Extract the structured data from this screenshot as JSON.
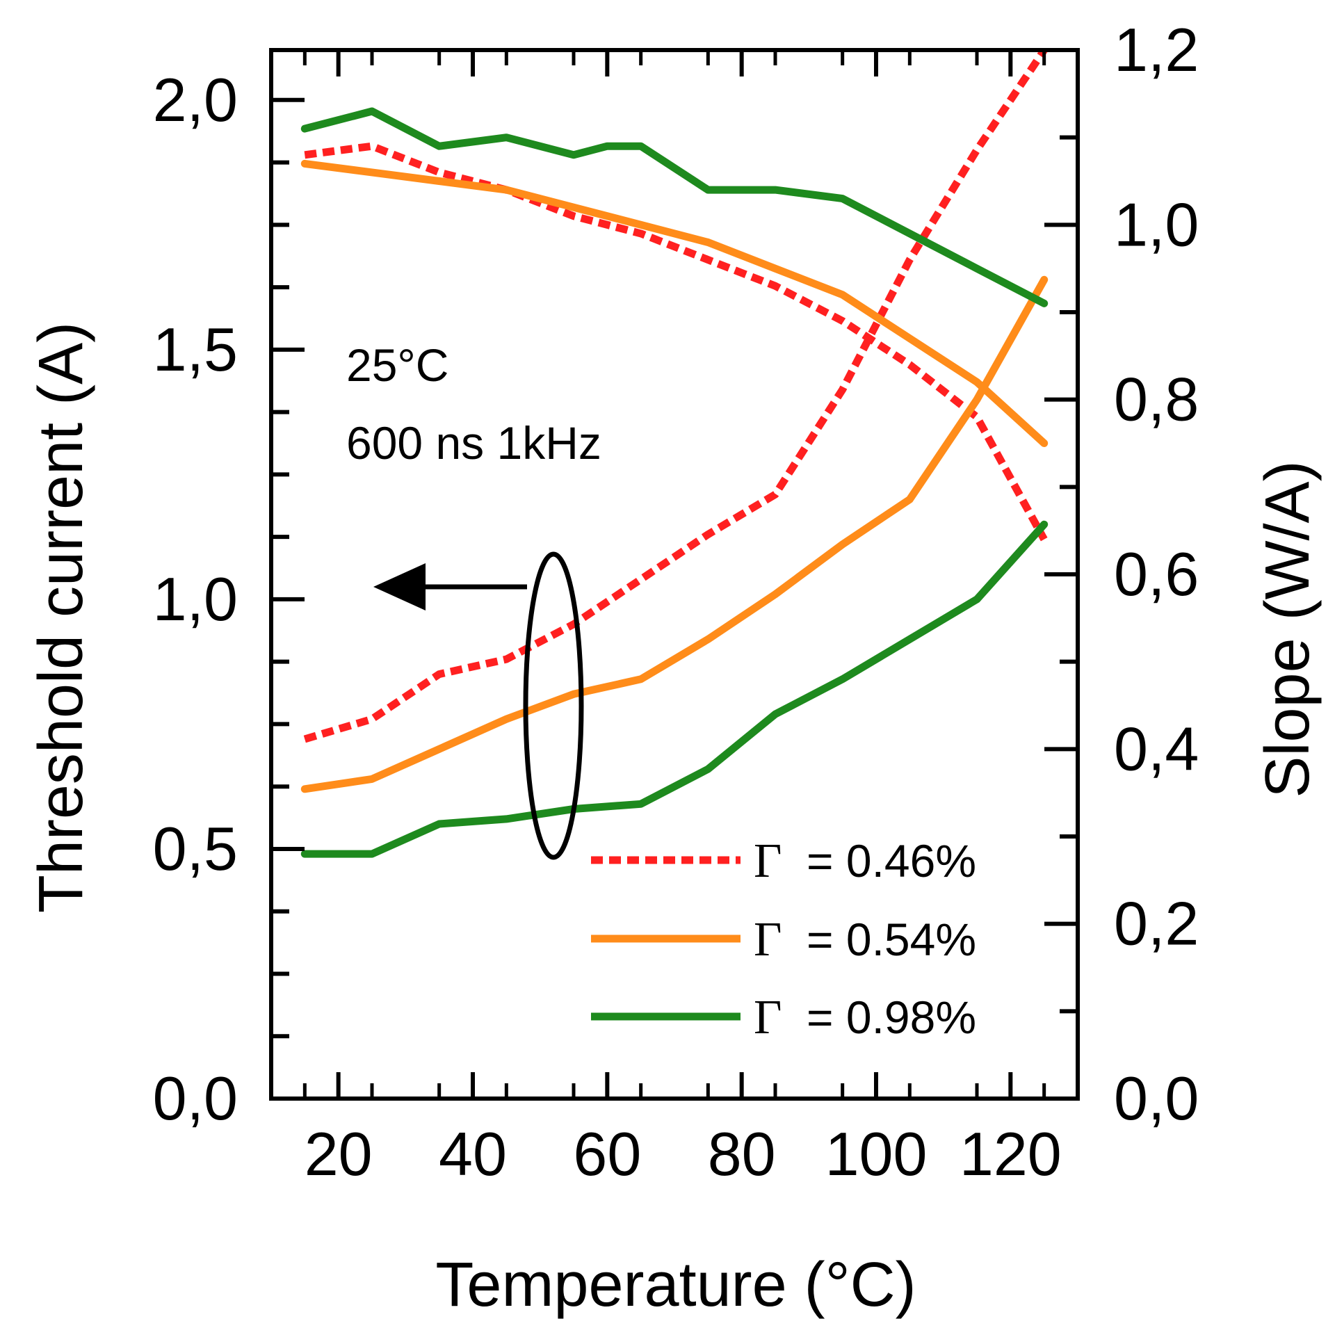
{
  "chart_data": {
    "type": "line",
    "xlabel": "Temperature (°C)",
    "ylabel_left": "Threshold current (A)",
    "ylabel_right": "Slope (W/A)",
    "xlim": [
      10,
      130
    ],
    "ylim_left": [
      0,
      2.1
    ],
    "ylim_right": [
      0,
      1.2
    ],
    "x_ticks": [
      "20",
      "40",
      "60",
      "80",
      "100",
      "120"
    ],
    "y_left_ticks": [
      "0,0",
      "0,5",
      "1,0",
      "1,5",
      "2,0"
    ],
    "y_right_ticks": [
      "0,0",
      "0,2",
      "0,4",
      "0,6",
      "0,8",
      "1,0",
      "1,2"
    ],
    "annotations": {
      "line1": "25°C",
      "line2": "600 ns 1kHz"
    },
    "legend": [
      {
        "prefix": "Γ",
        "text": "= 0.46%"
      },
      {
        "prefix": "Γ",
        "text": "= 0.54%"
      },
      {
        "prefix": "Γ",
        "text": "= 0.98%"
      }
    ],
    "colors": {
      "g046": "#ff2020",
      "g054": "#ff8c1a",
      "g098": "#1e8a1e",
      "axis": "#000000"
    },
    "threshold_axis": "left",
    "slope_axis": "right",
    "series": [
      {
        "legend_index": 0,
        "quantity": "threshold",
        "style": "dashed",
        "color_key": "g046",
        "x": [
          15,
          25,
          35,
          45,
          55,
          65,
          75,
          85,
          95,
          105,
          115,
          125
        ],
        "y": [
          0.72,
          0.76,
          0.85,
          0.88,
          0.95,
          1.04,
          1.13,
          1.21,
          1.42,
          1.68,
          1.9,
          2.1
        ]
      },
      {
        "legend_index": 0,
        "quantity": "slope",
        "style": "dashed",
        "color_key": "g046",
        "x": [
          15,
          25,
          35,
          45,
          55,
          65,
          75,
          85,
          95,
          105,
          115,
          125
        ],
        "y": [
          1.08,
          1.09,
          1.06,
          1.04,
          1.01,
          0.99,
          0.96,
          0.93,
          0.89,
          0.84,
          0.78,
          0.64
        ]
      },
      {
        "legend_index": 1,
        "quantity": "threshold",
        "style": "solid",
        "color_key": "g054",
        "x": [
          15,
          25,
          35,
          45,
          55,
          65,
          75,
          85,
          95,
          105,
          115,
          125
        ],
        "y": [
          0.62,
          0.64,
          0.7,
          0.76,
          0.81,
          0.84,
          0.92,
          1.01,
          1.11,
          1.2,
          1.4,
          1.64
        ]
      },
      {
        "legend_index": 1,
        "quantity": "slope",
        "style": "solid",
        "color_key": "g054",
        "x": [
          15,
          25,
          35,
          45,
          55,
          65,
          75,
          85,
          95,
          105,
          115,
          125
        ],
        "y": [
          1.07,
          1.06,
          1.05,
          1.04,
          1.02,
          1.0,
          0.98,
          0.95,
          0.92,
          0.87,
          0.82,
          0.75
        ]
      },
      {
        "legend_index": 2,
        "quantity": "threshold",
        "style": "solid",
        "color_key": "g098",
        "x": [
          15,
          25,
          35,
          45,
          55,
          65,
          75,
          85,
          95,
          105,
          115,
          125
        ],
        "y": [
          0.49,
          0.49,
          0.55,
          0.56,
          0.58,
          0.59,
          0.66,
          0.77,
          0.84,
          0.92,
          1.0,
          1.15
        ]
      },
      {
        "legend_index": 2,
        "quantity": "slope",
        "style": "solid",
        "color_key": "g098",
        "x": [
          15,
          25,
          35,
          45,
          55,
          60,
          65,
          75,
          85,
          95,
          105,
          115,
          125
        ],
        "y": [
          1.11,
          1.13,
          1.09,
          1.1,
          1.08,
          1.09,
          1.09,
          1.04,
          1.04,
          1.03,
          0.99,
          0.95,
          0.91
        ]
      }
    ]
  }
}
